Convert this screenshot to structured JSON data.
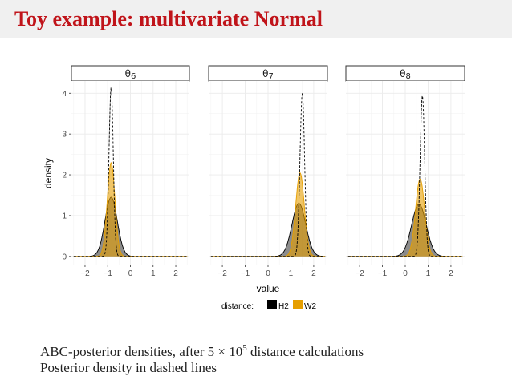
{
  "slide": {
    "title": "Toy example: multivariate Normal"
  },
  "caption": {
    "line1_pre": "ABC-posterior densities, after 5 × 10",
    "line1_sup": "5",
    "line1_post": " distance calculations",
    "line2": "Posterior density in dashed lines"
  },
  "colors": {
    "title": "#c0141a",
    "H2": "#000000",
    "W2": "#E69F00",
    "panel_bg": "#ffffff",
    "grid": "#ebebeb"
  },
  "chart_data": {
    "type": "area",
    "xlabel": "value",
    "ylabel": "density",
    "xlim": [
      -2.6,
      2.6
    ],
    "ylim": [
      -0.2,
      4.3
    ],
    "x_ticks": [
      -2,
      -1,
      0,
      1,
      2
    ],
    "x_tick_labels": [
      "−2",
      "−1",
      "0",
      "1",
      "2"
    ],
    "y_ticks": [
      0,
      1,
      2,
      3,
      4
    ],
    "y_tick_labels": [
      "0",
      "1",
      "2",
      "3",
      "4"
    ],
    "grid": true,
    "legend": {
      "position": "bottom",
      "title": "distance:",
      "items": [
        {
          "name": "H2",
          "color": "#000000"
        },
        {
          "name": "W2",
          "color": "#E69F00"
        }
      ]
    },
    "facets": [
      {
        "label": "θ6",
        "label_base": "θ",
        "label_sub": "6",
        "series": [
          {
            "name": "H2",
            "kind": "filled",
            "mean": -0.85,
            "sd": 0.27,
            "peak": 1.45
          },
          {
            "name": "W2",
            "kind": "filled",
            "mean": -0.85,
            "sd": 0.17,
            "peak": 2.3
          },
          {
            "name": "posterior",
            "kind": "dashed",
            "mean": -0.85,
            "sd": 0.095,
            "peak": 4.15
          }
        ]
      },
      {
        "label": "θ7",
        "label_base": "θ",
        "label_sub": "7",
        "series": [
          {
            "name": "H2",
            "kind": "filled",
            "mean": 1.35,
            "sd": 0.3,
            "peak": 1.3
          },
          {
            "name": "W2",
            "kind": "filled",
            "mean": 1.4,
            "sd": 0.19,
            "peak": 2.05
          },
          {
            "name": "posterior",
            "kind": "dashed",
            "mean": 1.5,
            "sd": 0.1,
            "peak": 4.0
          }
        ]
      },
      {
        "label": "θ8",
        "label_base": "θ",
        "label_sub": "8",
        "series": [
          {
            "name": "H2",
            "kind": "filled",
            "mean": 0.6,
            "sd": 0.32,
            "peak": 1.28
          },
          {
            "name": "W2",
            "kind": "filled",
            "mean": 0.65,
            "sd": 0.2,
            "peak": 1.9
          },
          {
            "name": "posterior",
            "kind": "dashed",
            "mean": 0.75,
            "sd": 0.1,
            "peak": 3.95
          }
        ]
      }
    ]
  }
}
